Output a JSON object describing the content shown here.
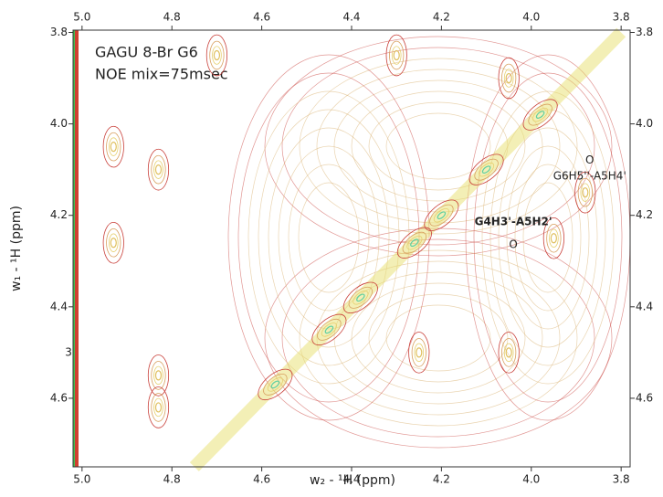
{
  "chart_data": {
    "type": "contour",
    "title_lines": [
      "GAGU 8-Br G6",
      "NOE mix=75msec"
    ],
    "x_label": "w₂ - ¹H  (ppm)",
    "y_label": "w₁ - ¹H  (ppm)",
    "xlim": [
      5.02,
      3.78
    ],
    "ylim": [
      3.795,
      4.75
    ],
    "xticks": [
      {
        "value": 5.0,
        "label": "5.0"
      },
      4.8,
      4.6,
      4.4,
      4.2,
      {
        "value": 4.0,
        "label": "4.0"
      },
      3.8
    ],
    "yticks": [
      3.8,
      {
        "value": 4.0,
        "label": "4.0"
      },
      4.2,
      4.4,
      4.6
    ],
    "peaks": {
      "x": [
        4.57,
        4.45,
        4.38,
        4.26,
        4.2,
        4.1,
        3.98,
        4.93,
        4.93,
        4.83,
        4.83,
        4.83,
        4.25,
        4.05,
        3.95,
        3.88,
        4.7,
        4.3,
        4.05
      ],
      "y": [
        4.57,
        4.45,
        4.38,
        4.26,
        4.2,
        4.1,
        3.98,
        4.05,
        4.26,
        4.1,
        4.55,
        4.62,
        4.5,
        4.5,
        4.25,
        4.15,
        3.85,
        3.85,
        3.9
      ]
    },
    "annotations": [
      {
        "text": "O",
        "x": 3.87,
        "y": 4.08
      },
      {
        "text": "G6H5''-A5H4'",
        "x": 3.87,
        "y": 4.115
      },
      {
        "text": "G4H3'-A5H2'",
        "x": 4.04,
        "y": 4.215,
        "bold": true
      },
      {
        "text": "O",
        "x": 4.04,
        "y": 4.265
      },
      {
        "text": "3",
        "x": 5.03,
        "y": 4.5
      }
    ]
  }
}
